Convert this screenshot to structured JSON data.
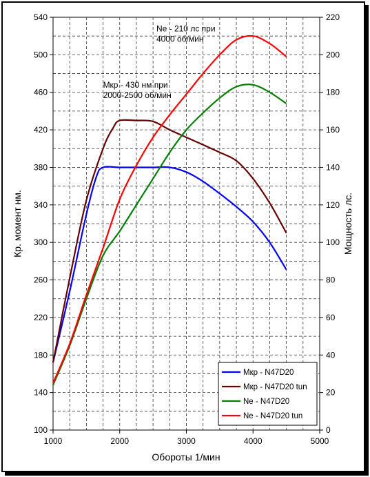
{
  "chart_data": {
    "type": "line",
    "xlabel": "Обороты 1/мин",
    "ylabel_left": "Кр. момент нм.",
    "ylabel_right": "Мощность лс.",
    "xlim": [
      1000,
      5000
    ],
    "ylim_left": [
      100,
      540
    ],
    "ylim_right": [
      0,
      220
    ],
    "x_ticks": [
      1000,
      2000,
      3000,
      4000,
      5000
    ],
    "y_left_ticks": [
      100,
      140,
      180,
      220,
      260,
      300,
      340,
      380,
      420,
      460,
      500,
      540
    ],
    "y_right_ticks": [
      0,
      20,
      40,
      60,
      80,
      100,
      120,
      140,
      160,
      180,
      200,
      220
    ],
    "grid": "vertical dashed every 250 rpm, horizontal dashed every 20 Nm",
    "legend_position": "bottom-right",
    "annotations": [
      {
        "lines": [
          "Ne - 210 лс при",
          "4000 об/мин"
        ],
        "x": 2550,
        "y": 525
      },
      {
        "lines": [
          "Мкр - 430 нм при",
          "2000-2500 об/мин"
        ],
        "x": 1750,
        "y": 465
      }
    ],
    "series": [
      {
        "name": "Мкр - N47D20",
        "axis": "left",
        "color": "#0000ff",
        "x": [
          1000,
          1250,
          1500,
          1650,
          1750,
          2000,
          2250,
          2500,
          2750,
          3000,
          3250,
          3500,
          3750,
          4000,
          4250,
          4500
        ],
        "values": [
          172,
          248,
          330,
          370,
          380,
          380,
          380,
          380,
          380,
          375,
          365,
          352,
          338,
          322,
          300,
          271
        ]
      },
      {
        "name": "Мкр - N47D20 tun",
        "axis": "left",
        "color": "#660000",
        "x": [
          1000,
          1250,
          1500,
          1750,
          1900,
          2000,
          2250,
          2500,
          2750,
          3000,
          3250,
          3500,
          3750,
          4000,
          4250,
          4500
        ],
        "values": [
          172,
          262,
          345,
          400,
          422,
          430,
          430,
          429,
          420,
          412,
          404,
          396,
          387,
          368,
          342,
          310
        ]
      },
      {
        "name": "Ne -  N47D20",
        "axis": "right",
        "color": "#008000",
        "x": [
          1000,
          1250,
          1500,
          1750,
          2000,
          2250,
          2500,
          2750,
          3000,
          3250,
          3500,
          3750,
          4000,
          4250,
          4500
        ],
        "values": [
          24,
          45,
          70,
          93,
          106,
          120,
          134,
          148,
          160,
          169,
          177,
          183,
          184,
          180,
          174
        ]
      },
      {
        "name": "Ne -  N47D20 tun",
        "axis": "right",
        "color": "#ff0000",
        "x": [
          1000,
          1250,
          1500,
          1750,
          2000,
          2250,
          2500,
          2750,
          3000,
          3250,
          3500,
          3750,
          4000,
          4250,
          4500
        ],
        "values": [
          25,
          46,
          72,
          97,
          123,
          141,
          156,
          168,
          179,
          190,
          200,
          208,
          210,
          206,
          199
        ]
      }
    ]
  }
}
